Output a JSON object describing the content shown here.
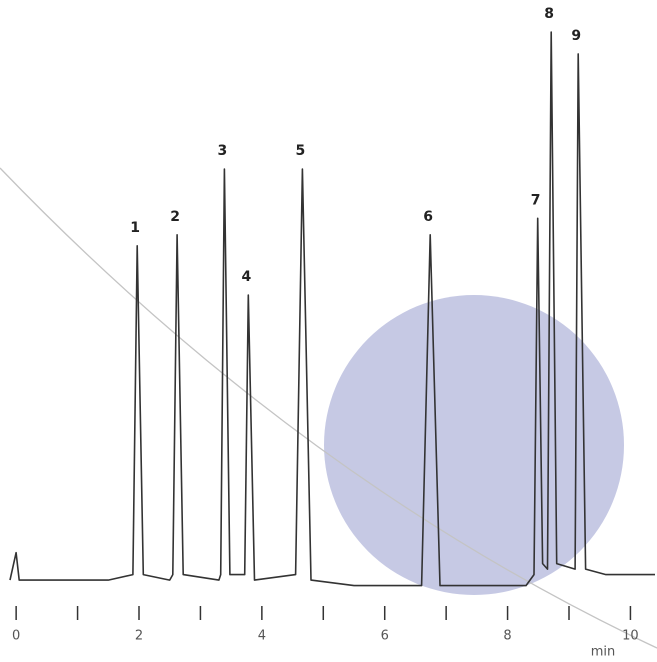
{
  "chart_data": {
    "type": "line",
    "x": [
      -0.1,
      0,
      0.05,
      0.5,
      1.5,
      1.9,
      1.97,
      2.07,
      2.5,
      2.55,
      2.62,
      2.72,
      3.3,
      3.33,
      3.39,
      3.48,
      3.72,
      3.78,
      3.88,
      4.55,
      4.66,
      4.8,
      5.5,
      6.6,
      6.74,
      6.9,
      8.3,
      8.43,
      8.49,
      8.57,
      8.65,
      8.71,
      8.8,
      9.1,
      9.15,
      9.27,
      9.6,
      10.4
    ],
    "values": [
      0,
      5,
      0,
      0,
      0,
      1,
      61,
      1,
      0,
      1,
      63,
      1,
      0,
      1,
      75,
      1,
      1,
      52,
      0,
      1,
      75,
      0,
      -1,
      -1,
      63,
      -1,
      -1,
      1,
      66,
      3,
      2,
      100,
      3,
      2,
      96,
      2,
      1,
      1
    ],
    "color": "#333333",
    "peak_labels": [
      "1",
      "2",
      "3",
      "4",
      "5",
      "6",
      "7",
      "8",
      "9"
    ],
    "xlim": [
      -0.1,
      10.4
    ],
    "ylim": [
      -4,
      100
    ],
    "xticks": [
      0,
      2,
      4,
      6,
      8,
      10
    ],
    "xminor_ticks": [
      1,
      3,
      5,
      7,
      9
    ],
    "x_label": "min"
  }
}
